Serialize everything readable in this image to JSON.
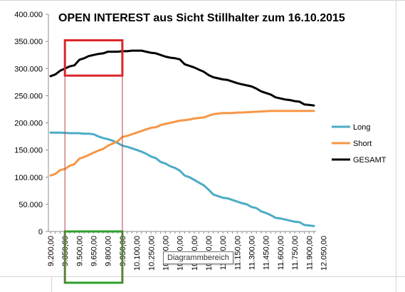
{
  "tooltip": "Diagrammbereich",
  "chart_data": {
    "type": "line",
    "title": "OPEN INTEREST aus Sicht Stillhalter zum 16.10.2015",
    "xlabel": "",
    "ylabel": "",
    "ylim": [
      0,
      400000
    ],
    "yticks": [
      "0",
      "50.000",
      "100.000",
      "150.000",
      "200.000",
      "250.000",
      "300.000",
      "350.000",
      "400.000"
    ],
    "xticks": [
      "9.200,00",
      "9.350,00",
      "9.500,00",
      "9.650,00",
      "9.800,00",
      "9.950,00",
      "10.100,00",
      "10.250,00",
      "10.400,00",
      "10.550,00",
      "10.700,00",
      "10.850,00",
      "11.000,00",
      "11.150,00",
      "11.300,00",
      "11.450,00",
      "11.600,00",
      "11.750,00",
      "11.900,00",
      "12.050,00"
    ],
    "x_start": 9200,
    "x_step": 50,
    "grid": false,
    "legend_position": "right",
    "series": [
      {
        "name": "Long",
        "color": "#4bacc6",
        "values": [
          182000,
          182000,
          182000,
          181500,
          181000,
          181000,
          181000,
          180000,
          180000,
          179000,
          175000,
          172000,
          170000,
          167000,
          163000,
          158000,
          156000,
          153000,
          150000,
          147000,
          143000,
          138000,
          135000,
          128000,
          125000,
          120000,
          117000,
          112000,
          103000,
          100000,
          95000,
          90000,
          85000,
          77000,
          68000,
          65000,
          62000,
          61000,
          58000,
          55000,
          52000,
          50000,
          45000,
          43000,
          37000,
          34000,
          30000,
          25000,
          24000,
          22000,
          20000,
          18000,
          17000,
          12000,
          11000,
          10000
        ]
      },
      {
        "name": "Short",
        "color": "#f79646",
        "values": [
          103000,
          106000,
          113000,
          115000,
          121000,
          124000,
          134000,
          137000,
          141000,
          145000,
          149000,
          152000,
          158000,
          162000,
          166000,
          174000,
          176000,
          179000,
          182000,
          185000,
          188000,
          191000,
          192000,
          196000,
          198000,
          200000,
          202000,
          204000,
          205000,
          206000,
          208000,
          209000,
          210000,
          213000,
          216000,
          217000,
          218000,
          218000,
          218000,
          219000,
          219000,
          219500,
          220000,
          220500,
          221000,
          221500,
          222000,
          222000,
          222000,
          222000,
          222000,
          222000,
          222000,
          222000,
          222000,
          222000
        ]
      },
      {
        "name": "GESAMT",
        "color": "#000000",
        "values": [
          286000,
          289000,
          296000,
          300000,
          304000,
          306000,
          316000,
          319000,
          323000,
          325000,
          327000,
          328000,
          331000,
          331000,
          331000,
          332000,
          332000,
          333000,
          333000,
          333000,
          331000,
          329000,
          328000,
          325000,
          322000,
          320000,
          319000,
          317000,
          308000,
          305000,
          302000,
          298000,
          294000,
          288000,
          284000,
          282000,
          280000,
          279000,
          276000,
          273000,
          271000,
          269000,
          267000,
          263000,
          258000,
          255000,
          252000,
          247000,
          245000,
          243000,
          242000,
          240000,
          239000,
          234000,
          233000,
          232000
        ]
      }
    ],
    "annotations": [
      {
        "name": "red-box",
        "color": "#d9252a",
        "x_range": [
          9350,
          9950
        ],
        "y_range": [
          287000,
          352000
        ]
      },
      {
        "name": "green-box",
        "color": "#2ca02c",
        "x_range": [
          9350,
          9950
        ],
        "y_range": [
          null,
          null
        ]
      },
      {
        "name": "x-range-guides",
        "color": "#b04848",
        "x_values": [
          9350,
          9950
        ]
      }
    ]
  }
}
